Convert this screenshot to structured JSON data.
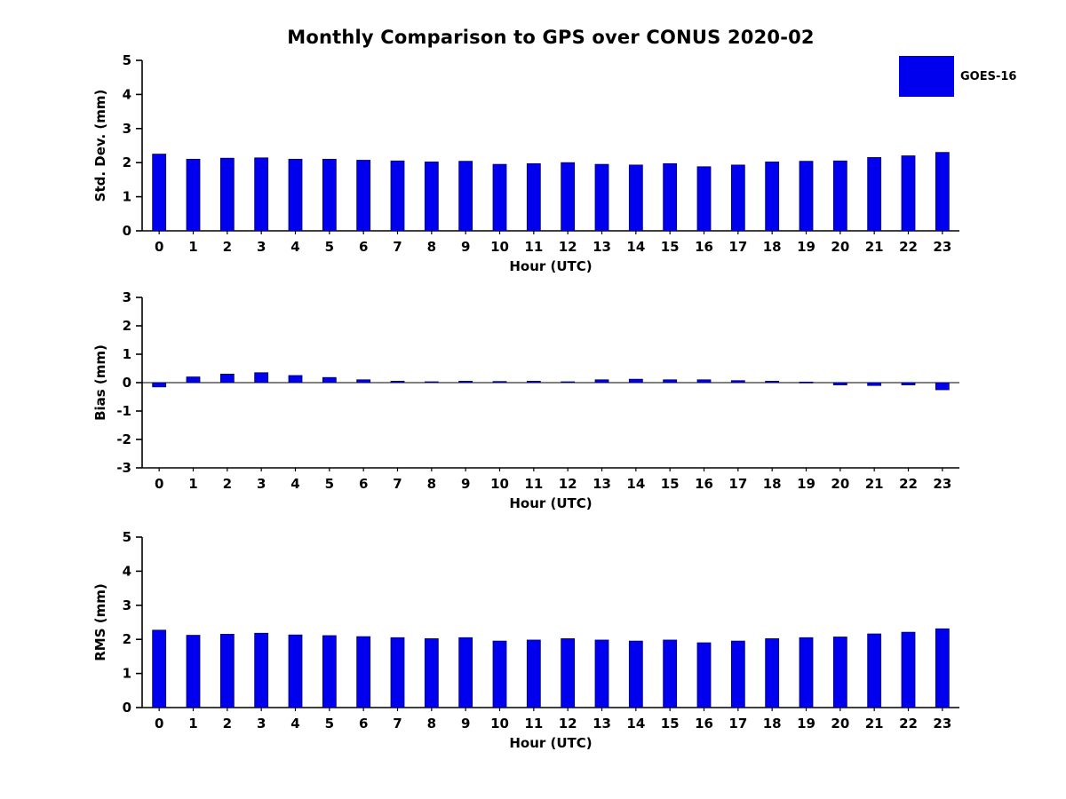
{
  "title": "Monthly Comparison to GPS over CONUS 2020-02",
  "legend": {
    "label": "GOES-16",
    "color": "#0000ee",
    "position": "top-right"
  },
  "chart_data": [
    {
      "type": "bar",
      "title": "",
      "ylabel": "Std. Dev. (mm)",
      "xlabel": "Hour (UTC)",
      "ylim": [
        0,
        5
      ],
      "yticks": [
        0,
        1,
        2,
        3,
        4,
        5
      ],
      "grid": false,
      "legend_position": "top-right",
      "bar_color": "#0000ee",
      "bar_edge_color": "#000060",
      "categories": [
        "0",
        "1",
        "2",
        "3",
        "4",
        "5",
        "6",
        "7",
        "8",
        "9",
        "10",
        "11",
        "12",
        "13",
        "14",
        "15",
        "16",
        "17",
        "18",
        "19",
        "20",
        "21",
        "22",
        "23"
      ],
      "series": [
        {
          "name": "GOES-16",
          "values": [
            2.25,
            2.1,
            2.13,
            2.14,
            2.1,
            2.1,
            2.07,
            2.05,
            2.02,
            2.04,
            1.95,
            1.97,
            2.0,
            1.95,
            1.93,
            1.97,
            1.88,
            1.93,
            2.02,
            2.04,
            2.05,
            2.15,
            2.2,
            2.3
          ]
        }
      ]
    },
    {
      "type": "bar",
      "title": "",
      "ylabel": "Bias (mm)",
      "xlabel": "Hour (UTC)",
      "ylim": [
        -3,
        3
      ],
      "yticks": [
        -3,
        -2,
        -1,
        0,
        1,
        2,
        3
      ],
      "grid": false,
      "bar_color": "#0000ee",
      "bar_edge_color": "#000060",
      "categories": [
        "0",
        "1",
        "2",
        "3",
        "4",
        "5",
        "6",
        "7",
        "8",
        "9",
        "10",
        "11",
        "12",
        "13",
        "14",
        "15",
        "16",
        "17",
        "18",
        "19",
        "20",
        "21",
        "22",
        "23"
      ],
      "series": [
        {
          "name": "GOES-16",
          "values": [
            -0.15,
            0.2,
            0.3,
            0.35,
            0.25,
            0.18,
            0.1,
            0.05,
            0.03,
            0.05,
            0.04,
            0.05,
            0.03,
            0.1,
            0.12,
            0.1,
            0.1,
            0.07,
            0.05,
            0.02,
            -0.08,
            -0.1,
            -0.08,
            -0.25
          ]
        }
      ]
    },
    {
      "type": "bar",
      "title": "",
      "ylabel": "RMS (mm)",
      "xlabel": "Hour (UTC)",
      "ylim": [
        0,
        5
      ],
      "yticks": [
        0,
        1,
        2,
        3,
        4,
        5
      ],
      "grid": false,
      "bar_color": "#0000ee",
      "bar_edge_color": "#000060",
      "categories": [
        "0",
        "1",
        "2",
        "3",
        "4",
        "5",
        "6",
        "7",
        "8",
        "9",
        "10",
        "11",
        "12",
        "13",
        "14",
        "15",
        "16",
        "17",
        "18",
        "19",
        "20",
        "21",
        "22",
        "23"
      ],
      "series": [
        {
          "name": "GOES-16",
          "values": [
            2.27,
            2.12,
            2.15,
            2.18,
            2.13,
            2.11,
            2.08,
            2.05,
            2.02,
            2.05,
            1.95,
            1.98,
            2.02,
            1.98,
            1.95,
            1.98,
            1.9,
            1.95,
            2.02,
            2.05,
            2.07,
            2.16,
            2.21,
            2.31
          ]
        }
      ]
    }
  ]
}
